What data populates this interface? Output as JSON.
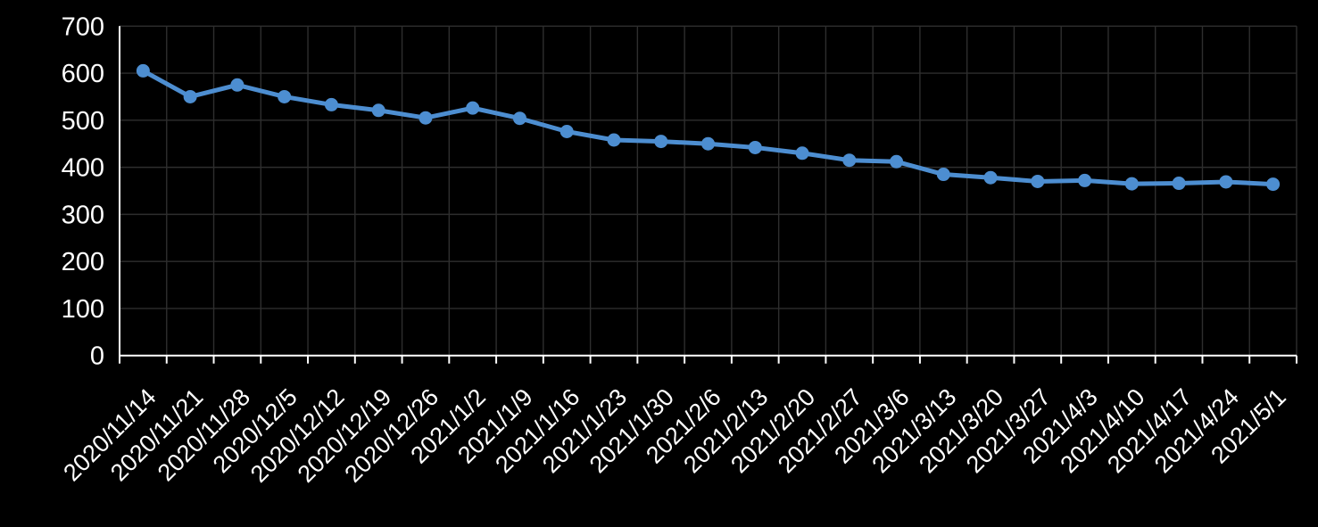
{
  "chart_data": {
    "type": "line",
    "title": "",
    "xlabel": "",
    "ylabel": "",
    "categories": [
      "2020/11/14",
      "2020/11/21",
      "2020/11/28",
      "2020/12/5",
      "2020/12/12",
      "2020/12/19",
      "2020/12/26",
      "2021/1/2",
      "2021/1/9",
      "2021/1/16",
      "2021/1/23",
      "2021/1/30",
      "2021/2/6",
      "2021/2/13",
      "2021/2/20",
      "2021/2/27",
      "2021/3/6",
      "2021/3/13",
      "2021/3/20",
      "2021/3/27",
      "2021/4/3",
      "2021/4/10",
      "2021/4/17",
      "2021/4/24",
      "2021/5/1"
    ],
    "values": [
      605,
      550,
      575,
      550,
      533,
      521,
      505,
      526,
      504,
      476,
      458,
      455,
      450,
      442,
      430,
      415,
      412,
      385,
      378,
      370,
      372,
      365,
      366,
      369,
      364
    ],
    "ylim": [
      0,
      700
    ],
    "y_ticks": [
      "0",
      "100",
      "200",
      "300",
      "400",
      "500",
      "600",
      "700"
    ],
    "grid": "on",
    "legend": "none",
    "marker": "circle"
  },
  "colors": {
    "background": "#000000",
    "line": "#4d8ed1",
    "marker": "#4d8ed1",
    "gridline": "#2e2e2e",
    "axis": "#ffffff",
    "text": "#ffffff"
  }
}
